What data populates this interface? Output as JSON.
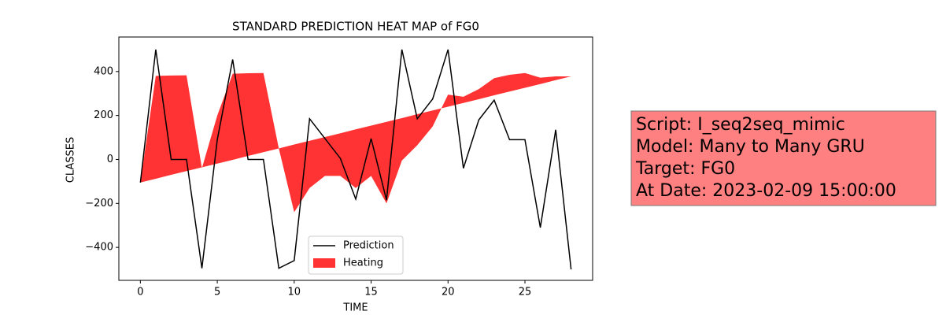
{
  "chart_data": {
    "type": "line",
    "title": "STANDARD PREDICTION HEAT MAP of FG0",
    "xlabel": "TIME",
    "ylabel": "CLASSES",
    "x": [
      0,
      1,
      2,
      3,
      4,
      5,
      6,
      7,
      8,
      9,
      10,
      11,
      12,
      13,
      14,
      15,
      16,
      17,
      18,
      19,
      20,
      21,
      22,
      23,
      24,
      25,
      26,
      27,
      28
    ],
    "series": [
      {
        "name": "Prediction",
        "color": "#000000",
        "kind": "line",
        "values": [
          -105,
          500,
          0,
          0,
          -495,
          90,
          455,
          0,
          0,
          -495,
          -460,
          185,
          95,
          5,
          -180,
          95,
          -185,
          500,
          185,
          275,
          500,
          -40,
          180,
          270,
          90,
          90,
          -310,
          135,
          -500
        ]
      },
      {
        "name": "Heating",
        "color": "#ff0000",
        "alpha": 0.8,
        "kind": "fill_between",
        "values": [
          -105,
          380,
          382,
          383,
          -40,
          200,
          390,
          392,
          393,
          50,
          -240,
          -130,
          -75,
          -75,
          -130,
          -75,
          -200,
          -5,
          65,
          150,
          295,
          285,
          320,
          370,
          385,
          393,
          372,
          378,
          378
        ],
        "base": [
          -105,
          -88,
          -70,
          -53,
          -36,
          -19,
          -2,
          16,
          33,
          50,
          68,
          85,
          102,
          119,
          137,
          154,
          171,
          188,
          206,
          223,
          240,
          257,
          274,
          292,
          309,
          326,
          343,
          361,
          378
        ]
      }
    ],
    "xlim": [
      -1.4,
      29.4
    ],
    "ylim": [
      -550,
      557
    ],
    "xticks": [
      0,
      5,
      10,
      15,
      20,
      25
    ],
    "yticks": [
      {
        "value": -400,
        "label": "−400"
      },
      {
        "value": -200,
        "label": "−200"
      },
      0,
      200,
      400
    ],
    "legend": "lower center",
    "annotations": [
      "Script: I_seq2seq_mimic",
      "Model: Many to Many GRU",
      "Target: FG0",
      "At Date: 2023-02-09 15:00:00"
    ],
    "annotation_color": "#ff8080"
  }
}
